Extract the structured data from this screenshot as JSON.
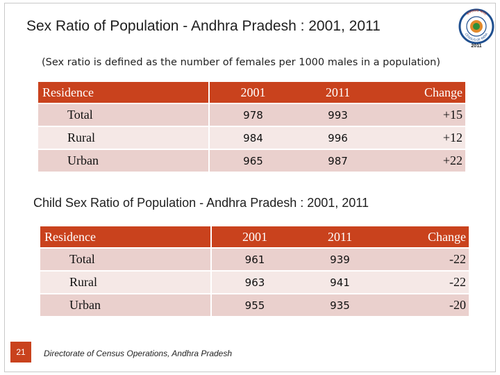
{
  "title": "Sex Ratio of Population - Andhra Pradesh : 2001, 2011",
  "logo": {
    "top_text": "जनगणना भारत",
    "bottom_text": "CENSUS OF INDIA",
    "year": "2011"
  },
  "definition": "(Sex ratio is defined as the number  of females per 1000 males in a population)",
  "table1": {
    "headers": [
      "Residence",
      "2001",
      "2011",
      "Change"
    ],
    "rows": [
      {
        "residence": "Total",
        "y2001": "978",
        "y2011": "993",
        "change": "+15"
      },
      {
        "residence": "Rural",
        "y2001": "984",
        "y2011": "996",
        "change": "+12"
      },
      {
        "residence": "Urban",
        "y2001": "965",
        "y2011": "987",
        "change": "+22"
      }
    ]
  },
  "subtitle": "Child Sex Ratio of Population - Andhra Pradesh : 2001, 2011",
  "table2": {
    "headers": [
      "Residence",
      "2001",
      "2011",
      "Change"
    ],
    "rows": [
      {
        "residence": "Total",
        "y2001": "961",
        "y2011": "939",
        "change": "-22"
      },
      {
        "residence": "Rural",
        "y2001": "963",
        "y2011": "941",
        "change": "-22"
      },
      {
        "residence": "Urban",
        "y2001": "955",
        "y2011": "935",
        "change": "-20"
      }
    ]
  },
  "page_number": "21",
  "footer": "Directorate of Census Operations, Andhra Pradesh",
  "colors": {
    "accent": "#c9421d",
    "row_dark": "#ead0cd",
    "row_light": "#f5e8e6"
  }
}
